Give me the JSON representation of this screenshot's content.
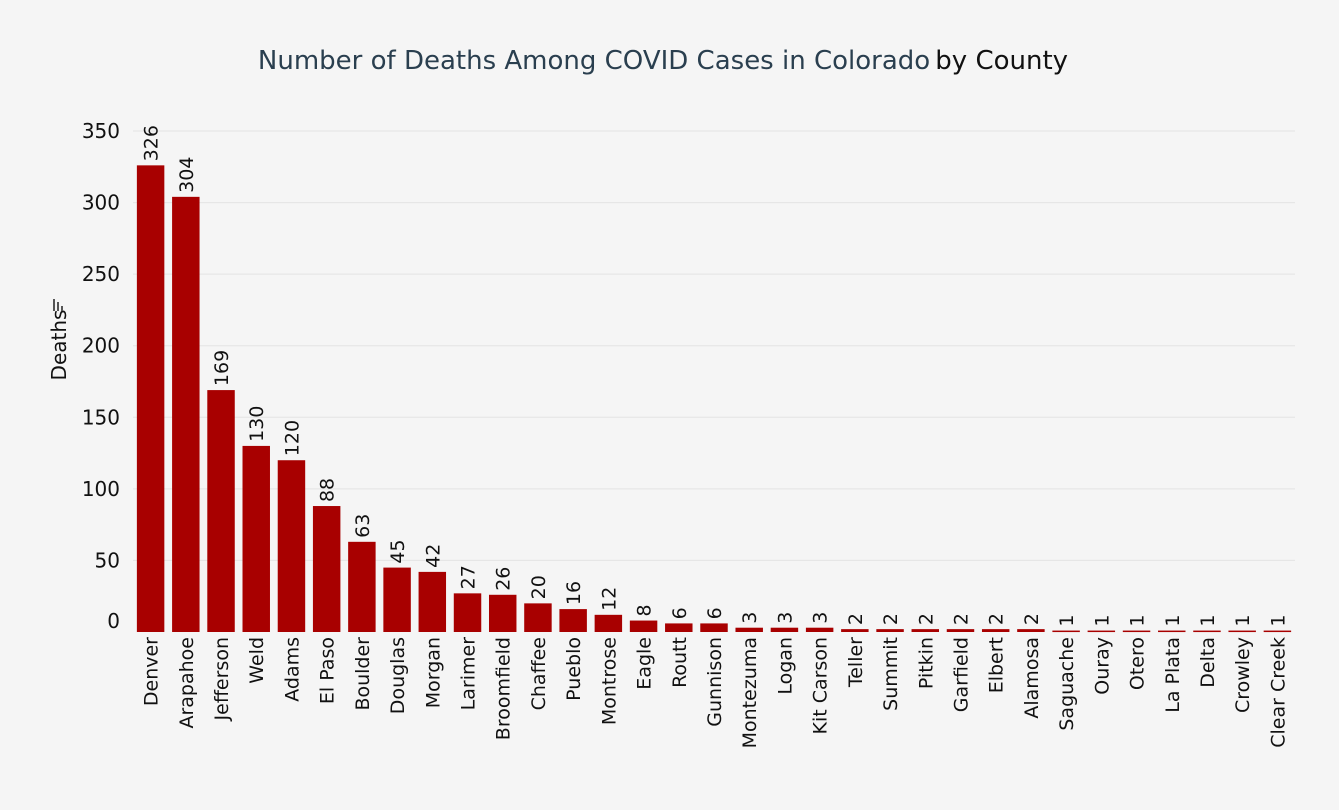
{
  "chart_data": {
    "type": "bar",
    "title": "Number of Deaths Among COVID Cases in Colorado",
    "title_tail": "by County",
    "xlabel": "",
    "ylabel": "Deaths",
    "ylim": [
      0,
      350
    ],
    "yticks": [
      0,
      50,
      100,
      150,
      200,
      250,
      300,
      350
    ],
    "grid": true,
    "bar_color": "#a80000",
    "filter_icon": "filter-icon",
    "categories": [
      "Denver",
      "Arapahoe",
      "Jefferson",
      "Weld",
      "Adams",
      "El Paso",
      "Boulder",
      "Douglas",
      "Morgan",
      "Larimer",
      "Broomfield",
      "Chaffee",
      "Pueblo",
      "Montrose",
      "Eagle",
      "Routt",
      "Gunnison",
      "Montezuma",
      "Logan",
      "Kit Carson",
      "Teller",
      "Summit",
      "Pitkin",
      "Garfield",
      "Elbert",
      "Alamosa",
      "Saguache",
      "Ouray",
      "Otero",
      "La Plata",
      "Delta",
      "Crowley",
      "Clear Creek"
    ],
    "values": [
      326,
      304,
      169,
      130,
      120,
      88,
      63,
      45,
      42,
      27,
      26,
      20,
      16,
      12,
      8,
      6,
      6,
      3,
      3,
      3,
      2,
      2,
      2,
      2,
      2,
      2,
      1,
      1,
      1,
      1,
      1,
      1,
      1
    ]
  }
}
